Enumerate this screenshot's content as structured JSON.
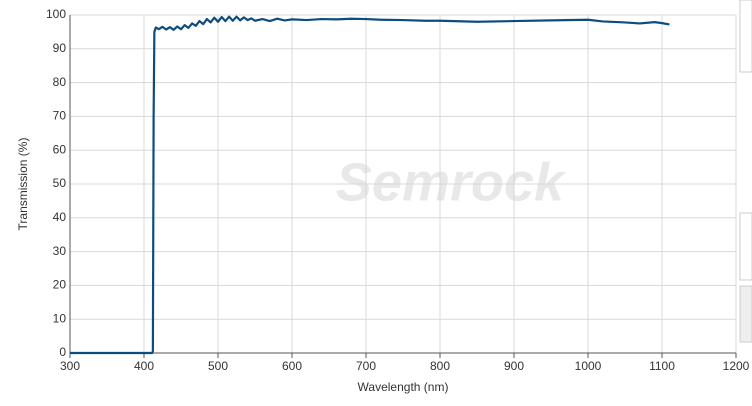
{
  "chart_data": {
    "type": "line",
    "watermark": "Semrock",
    "x_label": "Wavelength (nm)",
    "y_label": "Transmission (%)",
    "xlim": [
      300,
      1200
    ],
    "ylim": [
      0,
      100
    ],
    "xticks": [
      300,
      400,
      500,
      600,
      700,
      800,
      900,
      1000,
      1100,
      1200
    ],
    "yticks": [
      0,
      10,
      20,
      30,
      40,
      50,
      60,
      70,
      80,
      90,
      100
    ],
    "grid": true,
    "series": [
      {
        "color": "#0f4c7e",
        "x": [
          300,
          411,
          412,
          413,
          414,
          416,
          420,
          425,
          430,
          435,
          440,
          445,
          450,
          455,
          460,
          465,
          470,
          475,
          480,
          485,
          490,
          495,
          500,
          505,
          510,
          515,
          520,
          525,
          530,
          535,
          540,
          545,
          550,
          560,
          570,
          580,
          590,
          600,
          620,
          640,
          660,
          680,
          700,
          720,
          750,
          780,
          800,
          850,
          900,
          950,
          1000,
          1020,
          1050,
          1070,
          1090,
          1100,
          1110
        ],
        "values": [
          0,
          0,
          0.5,
          70,
          95,
          96.3,
          95.8,
          96.5,
          95.7,
          96.4,
          95.6,
          96.6,
          95.8,
          97,
          96.2,
          97.5,
          96.8,
          98.2,
          97.3,
          98.8,
          97.8,
          99.2,
          98,
          99.4,
          98.2,
          99.5,
          98.3,
          99.5,
          98.4,
          99.3,
          98.5,
          99,
          98.3,
          98.8,
          98.2,
          98.9,
          98.4,
          98.7,
          98.5,
          98.8,
          98.7,
          98.9,
          98.8,
          98.6,
          98.5,
          98.3,
          98.3,
          98.0,
          98.2,
          98.4,
          98.6,
          98.1,
          97.8,
          97.5,
          97.9,
          97.6,
          97.2
        ]
      }
    ]
  }
}
